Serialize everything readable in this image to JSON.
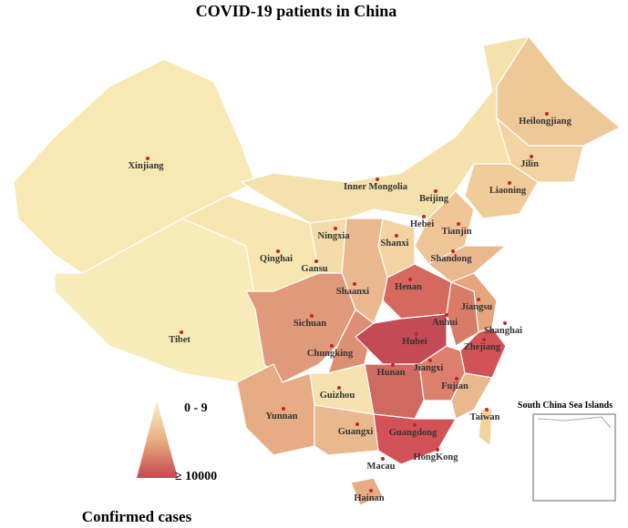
{
  "title": "COVID-19 patients in China",
  "labels": [
    "Xinjiang",
    "Tibet",
    "Qinghai",
    "Gansu",
    "Ningxia",
    "Inner Mongolia",
    "Beijing",
    "Tianjin",
    "Hebei",
    "Shanxi",
    "Shandong",
    "Henan",
    "Shaanxi",
    "Sichuan",
    "Chungking",
    "Hubei",
    "Anhui",
    "Jiangsu",
    "Shanghai",
    "Zhejiang",
    "Jiangxi",
    "Hunan",
    "Guizhou",
    "Yunnan",
    "Guangxi",
    "Guangdong",
    "Fujian",
    "Taiwan",
    "HongKong",
    "Macau",
    "Hainan",
    "Liaoning",
    "Jilin",
    "Heilongjiang"
  ],
  "inset_label": "South China Sea Islands",
  "legend": {
    "min_label": "0 - 9",
    "max_label": "≥ 10000",
    "title": "Confirmed cases"
  }
}
